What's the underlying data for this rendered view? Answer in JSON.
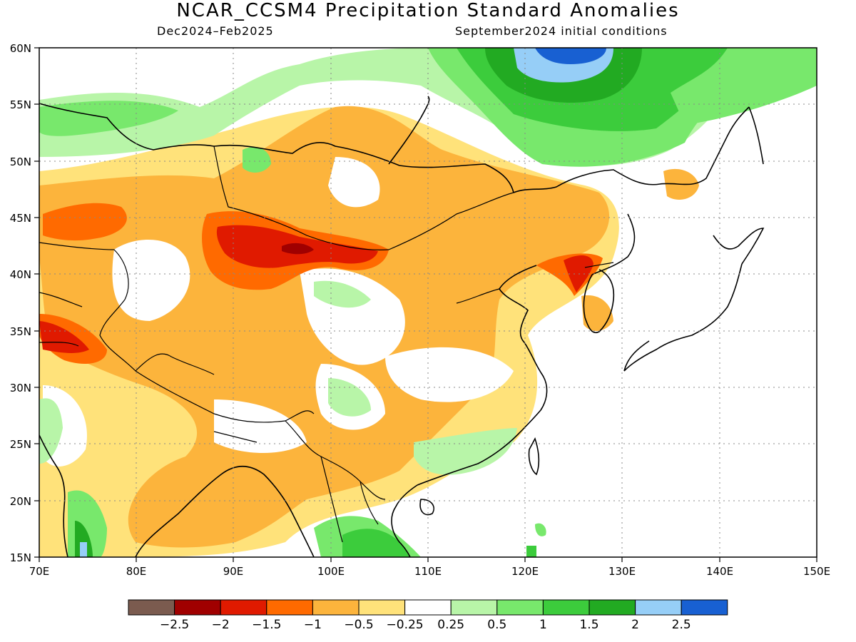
{
  "title": "NCAR_CCSM4 Precipitation Standard Anomalies",
  "period": "Dec2024–Feb2025",
  "init": "September2024 initial conditions",
  "axes": {
    "lon_ticks": [
      "70E",
      "80E",
      "90E",
      "100E",
      "110E",
      "120E",
      "130E",
      "140E",
      "150E"
    ],
    "lat_ticks": [
      "60N",
      "55N",
      "50N",
      "45N",
      "40N",
      "35N",
      "30N",
      "25N",
      "20N",
      "15N"
    ],
    "lon_range": [
      70,
      150
    ],
    "lat_range": [
      15,
      60
    ],
    "grid": "dotted"
  },
  "colorbar": {
    "colors": [
      "#7b5b4f",
      "#a00000",
      "#e01a00",
      "#ff6a00",
      "#fcb43c",
      "#ffe27a",
      "#ffffff",
      "#b8f5a8",
      "#78e86c",
      "#3ccc3c",
      "#22aa22",
      "#96cef7",
      "#1860d2"
    ],
    "labels": [
      "−2.5",
      "−2",
      "−1.5",
      "−1",
      "−0.5",
      "−0.25",
      "0.25",
      "0.5",
      "1",
      "1.5",
      "2",
      "2.5"
    ]
  },
  "chart_data": {
    "type": "heatmap",
    "title": "NCAR_CCSM4 Precipitation Standard Anomalies",
    "xlabel": "",
    "ylabel": "",
    "xlim": [
      70,
      150
    ],
    "ylim": [
      15,
      60
    ],
    "note_levels": [
      -2.5,
      -2,
      -1.5,
      -1,
      -0.5,
      -0.25,
      0.25,
      0.5,
      1,
      1.5,
      2,
      2.5
    ],
    "regions": [
      {
        "lon": [
          75,
          100
        ],
        "lat": [
          40,
          47
        ],
        "value": -1
      },
      {
        "lon": [
          90,
          104
        ],
        "lat": [
          41,
          44
        ],
        "value": -1.5
      },
      {
        "lon": [
          96,
          99
        ],
        "lat": [
          42,
          43
        ],
        "value": -2
      },
      {
        "lon": [
          122,
          127
        ],
        "lat": [
          39,
          42
        ],
        "value": -1.5
      },
      {
        "lon": [
          70,
          75
        ],
        "lat": [
          32,
          36
        ],
        "value": -1.5
      },
      {
        "lon": [
          110,
          130
        ],
        "lat": [
          44,
          50
        ],
        "value": -0.5
      },
      {
        "lon": [
          116,
          130
        ],
        "lat": [
          50,
          60
        ],
        "value": 1.5
      },
      {
        "lon": [
          122,
          126
        ],
        "lat": [
          57,
          60
        ],
        "value": 2
      },
      {
        "lon": [
          124,
          127
        ],
        "lat": [
          58,
          60
        ],
        "value": 2.5
      },
      {
        "lon": [
          104,
          110
        ],
        "lat": [
          15,
          19
        ],
        "value": 1
      },
      {
        "lon": [
          72,
          76
        ],
        "lat": [
          15,
          20
        ],
        "value": 1
      },
      {
        "lon": [
          80,
          112
        ],
        "lat": [
          20,
          38
        ],
        "value": -0.5
      }
    ]
  }
}
